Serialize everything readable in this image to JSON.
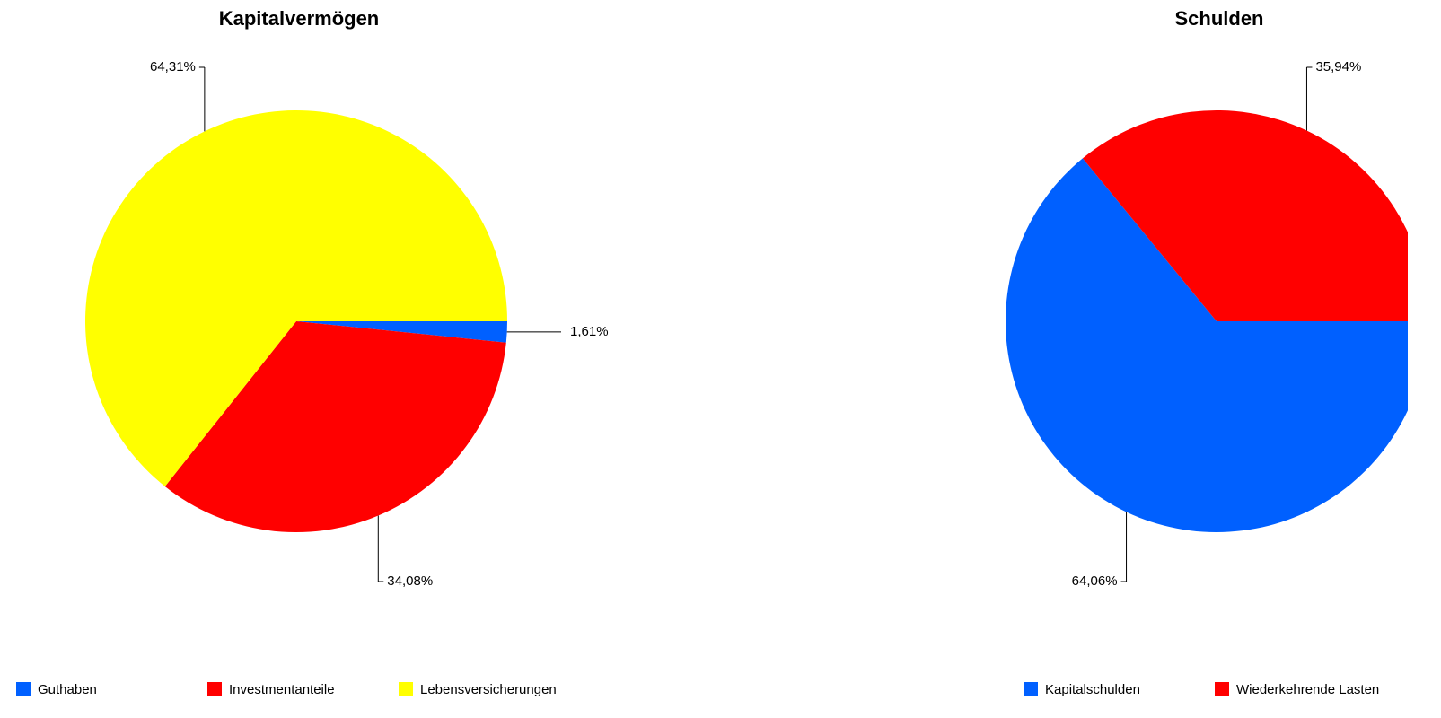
{
  "chart_data": [
    {
      "type": "pie",
      "title": "Kapitalvermögen",
      "categories": [
        "Guthaben",
        "Investmentanteile",
        "Lebensversicherungen"
      ],
      "values": [
        1.61,
        34.08,
        64.31
      ],
      "value_labels": [
        "1,61%",
        "34,08%",
        "64,31%"
      ],
      "colors": [
        "#0060ff",
        "#ff0000",
        "#ffff00"
      ]
    },
    {
      "type": "pie",
      "title": "Schulden",
      "categories": [
        "Kapitalschulden",
        "Wiederkehrende Lasten"
      ],
      "values": [
        64.06,
        35.94
      ],
      "value_labels": [
        "64,06%",
        "35,94%"
      ],
      "colors": [
        "#0060ff",
        "#ff0000"
      ]
    }
  ]
}
